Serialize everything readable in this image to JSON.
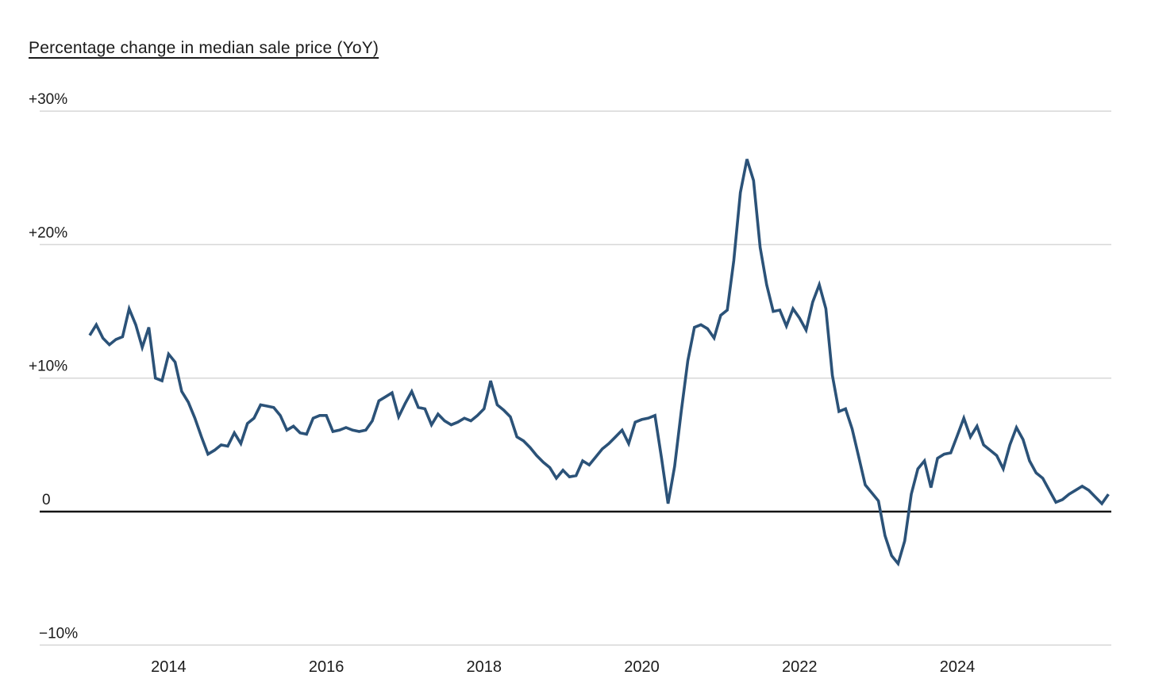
{
  "title": "Percentage change in median sale price (YoY)",
  "colors": {
    "line": "#2b5278",
    "grid": "#d7d7d7",
    "zero_line": "#141414",
    "text": "#1b1b1b",
    "background": "#ffffff"
  },
  "y_axis": {
    "ticks": [
      {
        "label": "+30%",
        "value": 30
      },
      {
        "label": "+20%",
        "value": 20
      },
      {
        "label": "+10%",
        "value": 10
      },
      {
        "label": "0",
        "value": 0
      },
      {
        "label": "−10%",
        "value": -10
      }
    ]
  },
  "x_axis": {
    "ticks": [
      {
        "label": "2014",
        "year": 2014
      },
      {
        "label": "2016",
        "year": 2016
      },
      {
        "label": "2018",
        "year": 2018
      },
      {
        "label": "2020",
        "year": 2020
      },
      {
        "label": "2022",
        "year": 2022
      },
      {
        "label": "2024",
        "year": 2024
      }
    ]
  },
  "chart_data": {
    "type": "line",
    "title": "Percentage change in median sale price (YoY)",
    "series_name": "Median sale price YoY % change",
    "unit": "percent",
    "frequency": "monthly",
    "start_month": "2013-01",
    "end_month": "2025-12",
    "ylim": [
      -10,
      30
    ],
    "grid": "horizontal",
    "legend": "none",
    "values": [
      13.2,
      14.0,
      13.0,
      12.5,
      12.9,
      13.1,
      15.2,
      14.0,
      12.3,
      13.8,
      10.0,
      9.8,
      11.8,
      11.2,
      9.0,
      8.2,
      7.0,
      5.6,
      4.3,
      4.6,
      5.0,
      4.9,
      5.9,
      5.1,
      6.6,
      7.0,
      8.0,
      7.9,
      7.8,
      7.2,
      6.1,
      6.4,
      5.9,
      5.8,
      7.0,
      7.2,
      7.2,
      6.0,
      6.1,
      6.3,
      6.1,
      6.0,
      6.1,
      6.8,
      8.3,
      8.6,
      8.9,
      7.1,
      8.1,
      9.0,
      7.8,
      7.7,
      6.5,
      7.3,
      6.8,
      6.5,
      6.7,
      7.0,
      6.8,
      7.2,
      7.7,
      9.8,
      8.0,
      7.6,
      7.1,
      5.6,
      5.3,
      4.8,
      4.2,
      3.7,
      3.3,
      2.5,
      3.1,
      2.6,
      2.7,
      3.8,
      3.5,
      4.1,
      4.7,
      5.1,
      5.6,
      6.1,
      5.1,
      6.7,
      6.9,
      7.0,
      7.2,
      4.0,
      0.6,
      3.4,
      7.5,
      11.3,
      13.8,
      14.0,
      13.7,
      13.0,
      14.7,
      15.1,
      18.8,
      23.9,
      26.4,
      24.8,
      19.8,
      17.0,
      15.0,
      15.1,
      13.9,
      15.2,
      14.5,
      13.6,
      15.7,
      17.0,
      15.2,
      10.2,
      7.5,
      7.7,
      6.2,
      4.1,
      2.0,
      1.4,
      0.8,
      -1.8,
      -3.3,
      -3.9,
      -2.2,
      1.3,
      3.2,
      3.8,
      1.8,
      4.0,
      4.3,
      4.4,
      5.7,
      7.0,
      5.6,
      6.4,
      5.0,
      4.6,
      4.2,
      3.2,
      5.0,
      6.3,
      5.4,
      3.8,
      2.9,
      2.5,
      1.6,
      0.7,
      0.9,
      1.3,
      1.6,
      1.9,
      1.6,
      1.1,
      0.6,
      1.3
    ]
  }
}
